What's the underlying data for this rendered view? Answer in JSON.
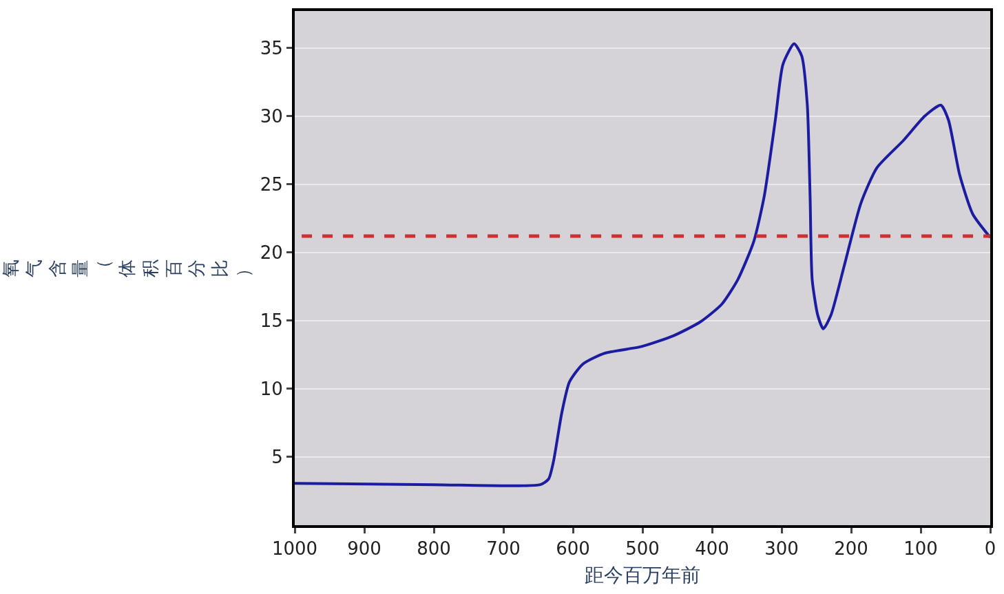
{
  "chart_data": {
    "type": "line",
    "xlabel": "距今百万年前",
    "ylabel": "氧气含量（体积百分比）",
    "x": [
      1000,
      800,
      647,
      635,
      628,
      616,
      605,
      586,
      555,
      501,
      455,
      417,
      386,
      363,
      340,
      325,
      309,
      298,
      282,
      271,
      263,
      259,
      256,
      248,
      240,
      229,
      210,
      186,
      163,
      125,
      94,
      71,
      60,
      44,
      25,
      0
    ],
    "series": [
      {
        "color": "#1c1ca0",
        "values": [
          3.07,
          2.97,
          2.97,
          3.38,
          4.66,
          8.24,
          10.5,
          11.8,
          12.6,
          13.1,
          13.9,
          14.9,
          16.2,
          18.0,
          20.8,
          24.1,
          29.7,
          33.8,
          35.3,
          34.4,
          30.8,
          24.1,
          18.0,
          15.4,
          14.4,
          15.4,
          19.0,
          23.6,
          26.2,
          28.2,
          30.0,
          30.8,
          29.7,
          25.7,
          22.8,
          21.1
        ]
      }
    ],
    "xlim": [
      1000,
      0
    ],
    "xticks": [
      1000,
      900,
      800,
      700,
      600,
      500,
      400,
      300,
      200,
      100,
      0
    ],
    "ylim": [
      0,
      37.7
    ],
    "yticks": [
      5,
      10,
      15,
      20,
      25,
      30,
      35
    ],
    "ref_lines": [
      {
        "axis": "y",
        "value": 21.2,
        "color": "#c83232",
        "line_style": "dashed"
      }
    ],
    "grid": "y",
    "legend": false,
    "marker": "none",
    "line_style": "solid"
  }
}
